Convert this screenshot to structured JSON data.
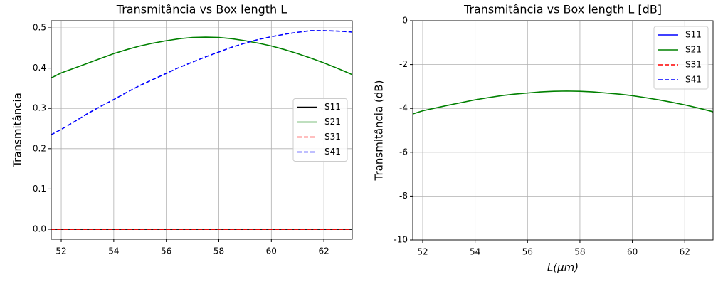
{
  "chart_data": [
    {
      "type": "line",
      "title": "Transmitância vs Box length L",
      "y_label": "Transmitância",
      "x": [
        51.6,
        52,
        52.5,
        53,
        53.5,
        54,
        54.5,
        55,
        55.5,
        56,
        56.5,
        57,
        57.5,
        58,
        58.5,
        59,
        59.5,
        60,
        60.5,
        61,
        61.5,
        62,
        62.5,
        63,
        63.1
      ],
      "series": [
        {
          "name": "S11",
          "color": "#000000",
          "dash": false,
          "values": [
            0,
            0,
            0,
            0,
            0,
            0,
            0,
            0,
            0,
            0,
            0,
            0,
            0,
            0,
            0,
            0,
            0,
            0,
            0,
            0,
            0,
            0,
            0,
            0,
            0
          ]
        },
        {
          "name": "S21",
          "color": "#008000",
          "dash": false,
          "values": [
            0.375,
            0.388,
            0.4,
            0.412,
            0.424,
            0.436,
            0.446,
            0.455,
            0.462,
            0.468,
            0.473,
            0.476,
            0.477,
            0.476,
            0.473,
            0.468,
            0.462,
            0.455,
            0.446,
            0.436,
            0.425,
            0.413,
            0.4,
            0.386,
            0.383
          ]
        },
        {
          "name": "S31",
          "color": "#ff0000",
          "dash": true,
          "values": [
            0,
            0,
            0,
            0,
            0,
            0,
            0,
            0,
            0,
            0,
            0,
            0,
            0,
            0,
            0,
            0,
            0,
            0,
            0,
            0,
            0,
            0,
            0,
            0,
            0
          ]
        },
        {
          "name": "S41",
          "color": "#0000ff",
          "dash": true,
          "values": [
            0.234,
            0.248,
            0.267,
            0.287,
            0.305,
            0.322,
            0.34,
            0.357,
            0.372,
            0.387,
            0.402,
            0.415,
            0.428,
            0.44,
            0.452,
            0.462,
            0.471,
            0.478,
            0.484,
            0.489,
            0.493,
            0.493,
            0.492,
            0.49,
            0.489
          ]
        }
      ],
      "xlim": [
        51.62,
        63.08
      ],
      "xticks": [
        52,
        54,
        56,
        58,
        60,
        62
      ],
      "ylim": [
        -0.0247,
        0.5177
      ],
      "yticks": [
        {
          "value": 0,
          "label": "0.0"
        },
        {
          "value": 0.1,
          "label": "0.1"
        },
        {
          "value": 0.2,
          "label": "0.2"
        },
        {
          "value": 0.3,
          "label": "0.3"
        },
        {
          "value": 0.4,
          "label": "0.4"
        },
        {
          "value": 0.5,
          "label": "0.5"
        }
      ],
      "grid": true,
      "legend": "center right"
    },
    {
      "type": "line",
      "title": "Transmitância vs Box length L [dB]",
      "x_label": "L(μm)",
      "y_label": "Transmitância (dB)",
      "x": [
        51.6,
        52,
        52.5,
        53,
        53.5,
        54,
        54.5,
        55,
        55.5,
        56,
        56.5,
        57,
        57.5,
        58,
        58.5,
        59,
        59.5,
        60,
        60.5,
        61,
        61.5,
        62,
        62.5,
        63,
        63.1
      ],
      "series": [
        {
          "name": "S11",
          "color": "#0000ff",
          "dash": false,
          "values": [
            null,
            null,
            null,
            null,
            null,
            null,
            null,
            null,
            null,
            null,
            null,
            null,
            null,
            null,
            null,
            null,
            null,
            null,
            null,
            null,
            null,
            null,
            null,
            null,
            null
          ]
        },
        {
          "name": "S21",
          "color": "#008000",
          "dash": false,
          "values": [
            -4.26,
            -4.11,
            -3.98,
            -3.85,
            -3.73,
            -3.61,
            -3.51,
            -3.42,
            -3.35,
            -3.3,
            -3.25,
            -3.22,
            -3.21,
            -3.22,
            -3.25,
            -3.3,
            -3.35,
            -3.42,
            -3.51,
            -3.61,
            -3.72,
            -3.84,
            -3.98,
            -4.13,
            -4.17
          ]
        },
        {
          "name": "S31",
          "color": "#ff0000",
          "dash": true,
          "values": [
            null,
            null,
            null,
            null,
            null,
            null,
            null,
            null,
            null,
            null,
            null,
            null,
            null,
            null,
            null,
            null,
            null,
            null,
            null,
            null,
            null,
            null,
            null,
            null,
            null
          ]
        },
        {
          "name": "S41",
          "color": "#0000ff",
          "dash": true,
          "values": [
            null,
            null,
            null,
            null,
            null,
            null,
            null,
            null,
            null,
            null,
            null,
            null,
            null,
            null,
            null,
            null,
            null,
            null,
            null,
            null,
            null,
            null,
            null,
            null,
            null
          ]
        }
      ],
      "xlim": [
        51.62,
        63.08
      ],
      "xticks": [
        52,
        54,
        56,
        58,
        60,
        62
      ],
      "ylim": [
        -10,
        0
      ],
      "yticks": [
        -10,
        -8,
        -6,
        -4,
        -2,
        0
      ],
      "grid": true,
      "legend": "upper right"
    }
  ]
}
